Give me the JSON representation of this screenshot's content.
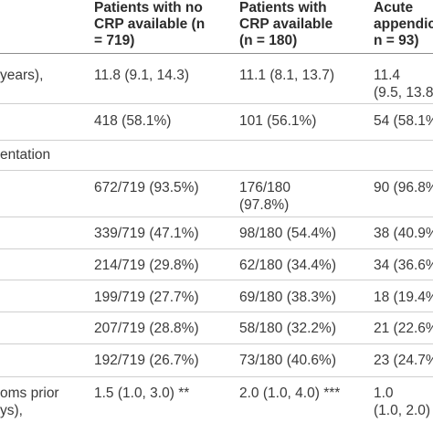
{
  "columns": {
    "c1": {
      "line1": "Patients with no",
      "line2": "CRP available (n",
      "line3": "= 719)"
    },
    "c2": {
      "line1": "Patients with",
      "line2": "CRP available",
      "line3": "(n = 180)"
    },
    "c3": {
      "line1": "Acute",
      "line2": "appendic",
      "line3": "n = 93)"
    }
  },
  "rows": [
    {
      "label": [
        "years),"
      ],
      "c1": [
        "11.8 (9.1, 14.3)"
      ],
      "c2": [
        "11.1 (8.1, 13.7)"
      ],
      "c3": [
        "11.4",
        "(9.5, 13.8"
      ]
    },
    {
      "label": [
        ""
      ],
      "c1": [
        "418 (58.1%)"
      ],
      "c2": [
        "101 (56.1%)"
      ],
      "c3": [
        "54 (58.1%"
      ]
    },
    {
      "label": [
        "entation"
      ],
      "c1": [
        ""
      ],
      "c2": [
        ""
      ],
      "c3": [
        ""
      ]
    },
    {
      "label": [
        ""
      ],
      "c1": [
        "672/719 (93.5%)"
      ],
      "c2": [
        "176/180",
        "(97.8%)"
      ],
      "c3": [
        "90 (96.8%"
      ]
    },
    {
      "label": [
        ""
      ],
      "c1": [
        "339/719 (47.1%)"
      ],
      "c2": [
        "98/180 (54.4%)"
      ],
      "c3": [
        "38 (40.9%"
      ]
    },
    {
      "label": [
        ""
      ],
      "c1": [
        "214/719 (29.8%)"
      ],
      "c2": [
        "62/180 (34.4%)"
      ],
      "c3": [
        "34 (36.6%"
      ]
    },
    {
      "label": [
        ""
      ],
      "c1": [
        "199/719 (27.7%)"
      ],
      "c2": [
        "69/180 (38.3%)"
      ],
      "c3": [
        "18 (19.4%"
      ]
    },
    {
      "label": [
        ""
      ],
      "c1": [
        "207/719 (28.8%)"
      ],
      "c2": [
        "58/180 (32.2%)"
      ],
      "c3": [
        "21 (22.6%"
      ]
    },
    {
      "label": [
        ""
      ],
      "c1": [
        "192/719 (26.7%)"
      ],
      "c2": [
        "73/180 (40.6%)"
      ],
      "c3": [
        "23 (24.7%"
      ]
    },
    {
      "label": [
        "oms prior",
        "ys),"
      ],
      "c1": [
        "1.5 (1.0, 3.0) **"
      ],
      "c2": [
        "2.0 (1.0, 4.0) ***"
      ],
      "c3": [
        "1.0",
        "(1.0, 2.0)"
      ]
    }
  ]
}
